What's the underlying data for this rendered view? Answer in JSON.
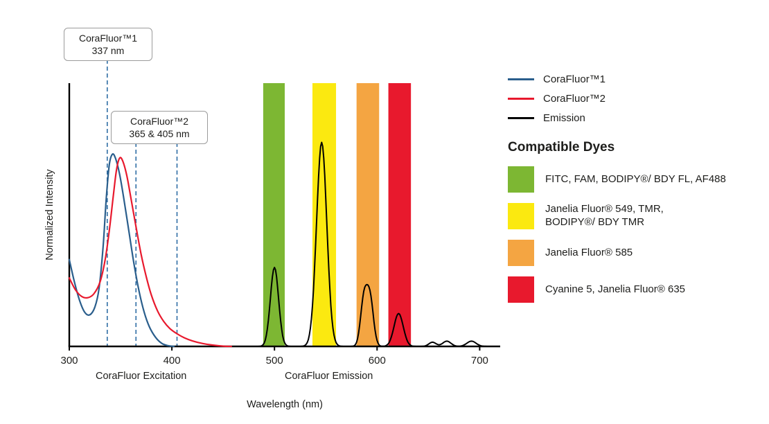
{
  "callouts": [
    {
      "title": "CoraFluor™1",
      "value": "337 nm"
    },
    {
      "title": "CoraFluor™2",
      "value": "365 & 405 nm"
    }
  ],
  "legend": {
    "items": [
      {
        "label": "CoraFluor™1",
        "color": "#2A5E8C",
        "type": "line"
      },
      {
        "label": "CoraFluor™2",
        "color": "#E8192D",
        "type": "line"
      },
      {
        "label": "Emission",
        "color": "#000000",
        "type": "line"
      }
    ]
  },
  "compatible_dyes": {
    "heading": "Compatible Dyes",
    "items": [
      {
        "color": "#7DB733",
        "label": "FITC, FAM, BODIPY®/ BDY FL, AF488"
      },
      {
        "color": "#FBE910",
        "label": "Janelia Fluor® 549, TMR,\nBODIPY®/ BDY TMR"
      },
      {
        "color": "#F4A542",
        "label": "Janelia Fluor® 585"
      },
      {
        "color": "#E8192D",
        "label": "Cyanine 5, Janelia Fluor® 635"
      }
    ]
  },
  "chart_data": {
    "type": "line",
    "title": "",
    "xlabel": "Wavelength (nm)",
    "ylabel": "Normalized Intensity",
    "xlim": [
      300,
      720
    ],
    "ylim": [
      0,
      1.0
    ],
    "x_ticks": [
      300,
      400,
      500,
      600,
      700
    ],
    "grid": false,
    "legend_position": "right",
    "axis_section_labels": [
      {
        "text": "CoraFluor Excitation",
        "x_nm": 370
      },
      {
        "text": "CoraFluor Emission",
        "x_nm": 553
      }
    ],
    "bands": [
      {
        "name": "FITC/FAM/BODIPY FL/AF488 filter",
        "from": 489,
        "to": 510,
        "color": "#7DB733"
      },
      {
        "name": "JF549/TMR/BODIPY TMR filter",
        "from": 537,
        "to": 560,
        "color": "#FBE910"
      },
      {
        "name": "JF585 filter",
        "from": 580,
        "to": 602,
        "color": "#F4A542"
      },
      {
        "name": "Cy5/JF635 filter",
        "from": 611,
        "to": 633,
        "color": "#E8192D"
      }
    ],
    "dashed_lines": [
      {
        "x": 337,
        "color": "#2E6DA4",
        "source": 0,
        "label": "CoraFluor™1 337 nm"
      },
      {
        "x": 365,
        "color": "#2E6DA4",
        "source": 1,
        "label": "CoraFluor™2 365 nm"
      },
      {
        "x": 405,
        "color": "#2E6DA4",
        "source": 1,
        "label": "CoraFluor™2 405 nm"
      }
    ],
    "series": [
      {
        "name": "CoraFluor™1 excitation",
        "color": "#2A5E8C",
        "points": [
          [
            300,
            0.33
          ],
          [
            305,
            0.245
          ],
          [
            310,
            0.175
          ],
          [
            315,
            0.13
          ],
          [
            320,
            0.12
          ],
          [
            325,
            0.15
          ],
          [
            329,
            0.22
          ],
          [
            333,
            0.38
          ],
          [
            336,
            0.56
          ],
          [
            339,
            0.69
          ],
          [
            342,
            0.73
          ],
          [
            345,
            0.715
          ],
          [
            349,
            0.655
          ],
          [
            353,
            0.565
          ],
          [
            358,
            0.44
          ],
          [
            363,
            0.315
          ],
          [
            368,
            0.21
          ],
          [
            373,
            0.13
          ],
          [
            378,
            0.075
          ],
          [
            384,
            0.035
          ],
          [
            390,
            0.012
          ],
          [
            396,
            0.003
          ],
          [
            402,
            0
          ]
        ]
      },
      {
        "name": "CoraFluor™2 excitation",
        "color": "#E8192D",
        "points": [
          [
            300,
            0.26
          ],
          [
            306,
            0.215
          ],
          [
            312,
            0.19
          ],
          [
            318,
            0.185
          ],
          [
            324,
            0.2
          ],
          [
            330,
            0.245
          ],
          [
            335,
            0.33
          ],
          [
            339,
            0.44
          ],
          [
            343,
            0.575
          ],
          [
            346,
            0.67
          ],
          [
            349,
            0.715
          ],
          [
            352,
            0.705
          ],
          [
            356,
            0.65
          ],
          [
            360,
            0.565
          ],
          [
            365,
            0.455
          ],
          [
            370,
            0.35
          ],
          [
            375,
            0.265
          ],
          [
            380,
            0.195
          ],
          [
            386,
            0.135
          ],
          [
            392,
            0.095
          ],
          [
            398,
            0.068
          ],
          [
            405,
            0.048
          ],
          [
            412,
            0.033
          ],
          [
            420,
            0.021
          ],
          [
            430,
            0.011
          ],
          [
            440,
            0.005
          ],
          [
            450,
            0.001
          ],
          [
            458,
            0
          ]
        ]
      },
      {
        "name": "Emission",
        "color": "#000000",
        "range": [
          468,
          716
        ],
        "peaks": [
          {
            "center": 500,
            "height": 0.3,
            "width": 4
          },
          {
            "center": 546,
            "height": 0.775,
            "width": 5
          },
          {
            "center": 587,
            "height": 0.17,
            "width": 3.2
          },
          {
            "center": 593,
            "height": 0.185,
            "width": 3.4
          },
          {
            "center": 621,
            "height": 0.125,
            "width": 4.5
          },
          {
            "center": 654,
            "height": 0.016,
            "width": 3.5
          },
          {
            "center": 668,
            "height": 0.02,
            "width": 4
          },
          {
            "center": 692,
            "height": 0.02,
            "width": 4.5
          }
        ]
      }
    ]
  }
}
